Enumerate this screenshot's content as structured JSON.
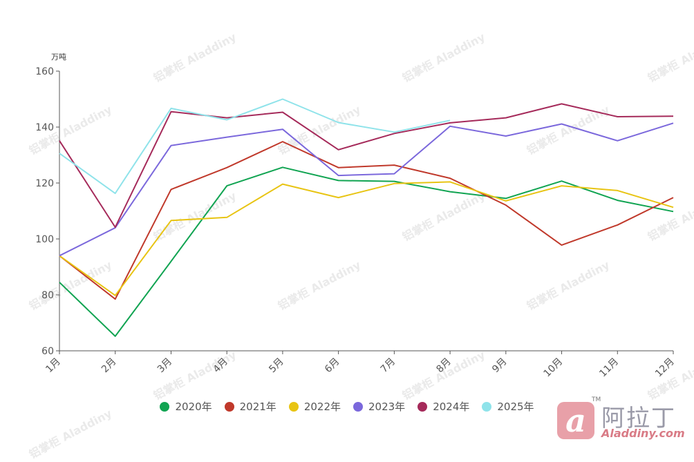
{
  "chart_data": {
    "type": "line",
    "title": "",
    "xlabel": "",
    "ylabel": "",
    "unit": "万吨",
    "categories": [
      "1月",
      "2月",
      "3月",
      "4月",
      "5月",
      "6月",
      "7月",
      "8月",
      "9月",
      "10月",
      "11月",
      "12月"
    ],
    "ylim": [
      60,
      160
    ],
    "yticks": [
      60,
      80,
      100,
      120,
      140,
      160
    ],
    "grid": false,
    "legend_position": "bottom",
    "series": [
      {
        "name": "2020年",
        "color": "#11a452",
        "values": [
          84.5,
          65.2,
          92.0,
          119.0,
          125.6,
          120.9,
          120.6,
          116.9,
          114.5,
          120.7,
          113.8,
          109.8
        ]
      },
      {
        "name": "2021年",
        "color": "#c0392b",
        "values": [
          94.0,
          78.5,
          117.7,
          125.5,
          134.8,
          125.5,
          126.4,
          121.7,
          112.1,
          97.8,
          105.0,
          114.8
        ]
      },
      {
        "name": "2022年",
        "color": "#e8c413",
        "values": [
          94.0,
          79.8,
          106.6,
          107.7,
          119.6,
          114.8,
          119.8,
          120.4,
          113.6,
          119.0,
          117.3,
          111.3
        ]
      },
      {
        "name": "2023年",
        "color": "#7b68dc",
        "values": [
          94.0,
          104.0,
          133.4,
          136.4,
          139.2,
          122.7,
          123.3,
          140.3,
          136.8,
          141.1,
          135.1,
          141.4
        ]
      },
      {
        "name": "2024年",
        "color": "#a52a5a",
        "values": [
          135.1,
          104.2,
          145.5,
          143.3,
          145.3,
          131.9,
          137.7,
          141.5,
          143.3,
          148.3,
          143.7,
          143.9
        ]
      },
      {
        "name": "2025年",
        "color": "#8fe3ea",
        "values": [
          130.6,
          116.3,
          146.7,
          142.6,
          150.0,
          141.6,
          138.2,
          142.4,
          null,
          null,
          null,
          null
        ]
      }
    ]
  },
  "watermark": {
    "cn": "铝掌柜",
    "en": "Aladdiny"
  },
  "logo": {
    "mark": "a",
    "cn": "阿拉丁",
    "en": "Aladdiny.com",
    "tm": "TM"
  }
}
